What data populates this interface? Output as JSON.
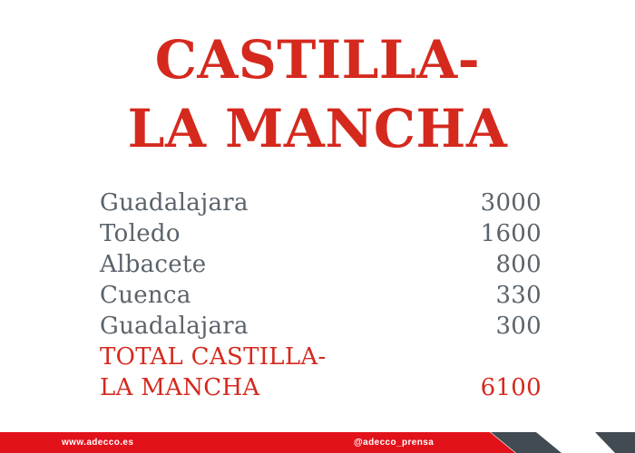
{
  "title": {
    "line1": "CASTILLA-",
    "line2": "LA MANCHA"
  },
  "table": {
    "rows": [
      {
        "label": "Guadalajara",
        "value": "3000",
        "emphasis": false
      },
      {
        "label": "Toledo",
        "value": "1600",
        "emphasis": false
      },
      {
        "label": "Albacete",
        "value": "800",
        "emphasis": false
      },
      {
        "label": "Cuenca",
        "value": "330",
        "emphasis": false
      },
      {
        "label": "Guadalajara",
        "value": "300",
        "emphasis": false
      },
      {
        "label": "TOTAL CASTILLA-",
        "value": "",
        "emphasis": true
      },
      {
        "label": "LA MANCHA",
        "value": "6100",
        "emphasis": true
      }
    ]
  },
  "footer": {
    "website": "www.adecco.es",
    "handle": "@adecco_prensa"
  },
  "colors": {
    "accent_red": "#d5291e",
    "footer_bar_red": "#e2121b",
    "dark_slate": "#424a52",
    "text_gray": "#5a636b"
  }
}
